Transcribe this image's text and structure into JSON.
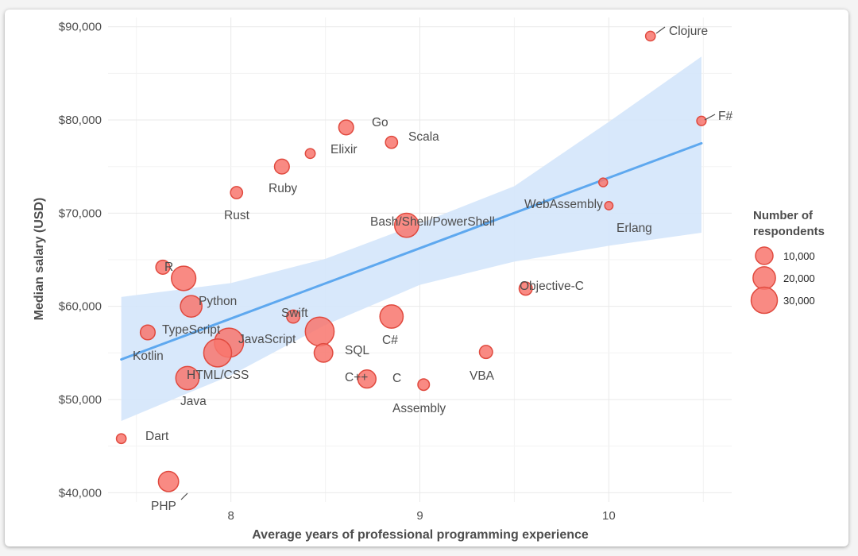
{
  "chart_data": {
    "type": "scatter",
    "title": "",
    "xlabel": "Average years of professional programming experience",
    "ylabel": "Median salary (USD)",
    "xlim": [
      7.35,
      10.65
    ],
    "ylim": [
      39000,
      91000
    ],
    "x_ticks": [
      8,
      9,
      10
    ],
    "y_ticks": [
      40000,
      50000,
      60000,
      70000,
      80000,
      90000
    ],
    "y_tick_labels": [
      "$40,000",
      "$50,000",
      "$60,000",
      "$70,000",
      "$80,000",
      "$90,000"
    ],
    "points": [
      {
        "name": "Clojure",
        "x": 10.22,
        "y": 89000,
        "respondents": 1200
      },
      {
        "name": "F#",
        "x": 10.49,
        "y": 79900,
        "respondents": 1000
      },
      {
        "name": "Go",
        "x": 8.61,
        "y": 79200,
        "respondents": 6000
      },
      {
        "name": "Scala",
        "x": 8.85,
        "y": 77600,
        "respondents": 3000
      },
      {
        "name": "Elixir",
        "x": 8.42,
        "y": 76400,
        "respondents": 1300
      },
      {
        "name": "Ruby",
        "x": 8.27,
        "y": 75000,
        "respondents": 6000
      },
      {
        "name": "WebAssembly",
        "x": 9.97,
        "y": 73300,
        "respondents": 700
      },
      {
        "name": "Rust",
        "x": 8.03,
        "y": 72200,
        "respondents": 3000
      },
      {
        "name": "Erlang",
        "x": 10.0,
        "y": 70800,
        "respondents": 500
      },
      {
        "name": "Bash/Shell/PowerShell",
        "x": 8.93,
        "y": 68700,
        "respondents": 24000
      },
      {
        "name": "R",
        "x": 7.64,
        "y": 64200,
        "respondents": 5000
      },
      {
        "name": "",
        "x": 7.75,
        "y": 63000,
        "respondents": 25000
      },
      {
        "name": "Objective-C",
        "x": 9.56,
        "y": 61900,
        "respondents": 4000
      },
      {
        "name": "Python",
        "x": 7.79,
        "y": 60000,
        "respondents": 18000
      },
      {
        "name": "Swift",
        "x": 8.33,
        "y": 58900,
        "respondents": 4000
      },
      {
        "name": "C#",
        "x": 8.85,
        "y": 58900,
        "respondents": 22000
      },
      {
        "name": "SQL",
        "x": 8.47,
        "y": 57300,
        "respondents": 38000
      },
      {
        "name": "TypeScript",
        "x": 7.56,
        "y": 57200,
        "respondents": 6000
      },
      {
        "name": "JavaScript",
        "x": 7.99,
        "y": 56100,
        "respondents": 39000
      },
      {
        "name": "VBA",
        "x": 9.35,
        "y": 55100,
        "respondents": 4000
      },
      {
        "name": "HTML/CSS",
        "x": 7.93,
        "y": 55000,
        "respondents": 35000
      },
      {
        "name": "C++",
        "x": 8.49,
        "y": 55000,
        "respondents": 12000
      },
      {
        "name": "Java",
        "x": 7.77,
        "y": 52300,
        "respondents": 22000
      },
      {
        "name": "C",
        "x": 8.72,
        "y": 52200,
        "respondents": 11000
      },
      {
        "name": "Kotlin",
        "x": "",
        "y": "",
        "respondents": ""
      },
      {
        "name": "Assembly",
        "x": 9.02,
        "y": 51600,
        "respondents": 2500
      },
      {
        "name": "Dart",
        "x": 7.42,
        "y": 45800,
        "respondents": 1200
      },
      {
        "name": "PHP",
        "x": 7.67,
        "y": 41200,
        "respondents": 15000
      }
    ],
    "trend_line": {
      "x": [
        7.42,
        10.49
      ],
      "y": [
        54300,
        77500
      ]
    },
    "confidence_band": {
      "x": [
        7.42,
        8.0,
        8.5,
        9.0,
        9.5,
        10.0,
        10.49
      ],
      "lower": [
        47700,
        52600,
        58000,
        62300,
        64800,
        66500,
        67900
      ],
      "upper": [
        61000,
        62500,
        65100,
        68900,
        72900,
        79800,
        86800
      ]
    },
    "legend": {
      "title_line1": "Number of",
      "title_line2": "respondents",
      "entries": [
        {
          "label": "10,000",
          "value": 10000
        },
        {
          "label": "20,000",
          "value": 20000
        },
        {
          "label": "30,000",
          "value": 30000
        }
      ],
      "placement": "right"
    },
    "colors": {
      "point": "#f8766d",
      "point_edge": "#e04a3f",
      "trend": "#5ea8ef",
      "band": "#d4e5fb"
    }
  }
}
